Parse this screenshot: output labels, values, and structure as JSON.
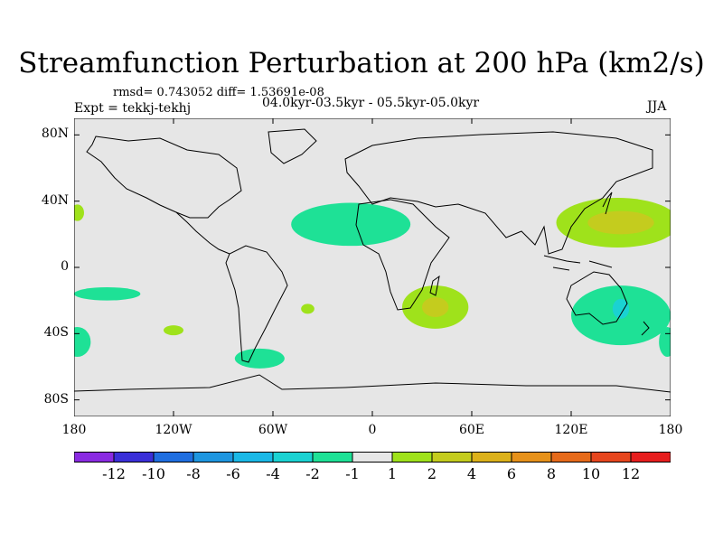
{
  "title": "Streamfunction Perturbation at 200 hPa (km2/s)",
  "stats_line": "rmsd= 0.743052 diff= 1.53691e-08",
  "experiment": "Expt = tekkj-tekhj",
  "period": "04.0kyr-03.5kyr - 05.5kyr-05.0kyr",
  "season": "JJA",
  "map": {
    "projection": "cylindrical equidistant",
    "lon_range": [
      -180,
      180
    ],
    "lat_range": [
      -90,
      90
    ],
    "background": "#e6e6e6",
    "lat_ticks": [
      {
        "value": 80,
        "label": "80N"
      },
      {
        "value": 40,
        "label": "40N"
      },
      {
        "value": 0,
        "label": "0"
      },
      {
        "value": -40,
        "label": "40S"
      },
      {
        "value": -80,
        "label": "80S"
      }
    ],
    "lon_ticks": [
      {
        "value": -180,
        "label": "180"
      },
      {
        "value": -120,
        "label": "120W"
      },
      {
        "value": -60,
        "label": "60W"
      },
      {
        "value": 0,
        "label": "0"
      },
      {
        "value": 60,
        "label": "60E"
      },
      {
        "value": 120,
        "label": "120E"
      },
      {
        "value": 180,
        "label": "180"
      }
    ],
    "anomalies": [
      {
        "name": "north-atlantic-sahara-negative",
        "category": "-2 to -1",
        "center_lon": -13,
        "center_lat": 26,
        "half_lon": 36,
        "half_lat": 13,
        "color": "#1ee196"
      },
      {
        "name": "east-asia-positive",
        "category": "1 to 2",
        "center_lon": 148,
        "center_lat": 27,
        "half_lon": 37,
        "half_lat": 15,
        "color": "#9fe21b"
      },
      {
        "name": "east-asia-positive-core",
        "category": "2 to 4",
        "center_lon": 150,
        "center_lat": 27,
        "half_lon": 20,
        "half_lat": 7,
        "color": "#c4cc1e"
      },
      {
        "name": "southern-africa-positive",
        "category": "1 to 2",
        "center_lon": 38,
        "center_lat": -24,
        "half_lon": 20,
        "half_lat": 13,
        "color": "#9fe21b"
      },
      {
        "name": "southern-africa-positive-core",
        "category": "2 to 4",
        "center_lon": 38,
        "center_lat": -24,
        "half_lon": 8,
        "half_lat": 6,
        "color": "#c4cc1e"
      },
      {
        "name": "australia-negative",
        "category": "-2 to -1",
        "center_lon": 150,
        "center_lat": -29,
        "half_lon": 30,
        "half_lat": 18,
        "color": "#1ee196"
      },
      {
        "name": "australia-negative-core",
        "category": "-4 to -2",
        "center_lon": 150,
        "center_lat": -25,
        "half_lon": 5,
        "half_lat": 6,
        "color": "#1ad2d2"
      },
      {
        "name": "south-america-tip-negative",
        "category": "-2 to -1",
        "center_lon": -68,
        "center_lat": -55,
        "half_lon": 15,
        "half_lat": 6,
        "color": "#1ee196"
      },
      {
        "name": "southeast-pacific-negative",
        "category": "-2 to -1",
        "center_lon": -160,
        "center_lat": -16,
        "half_lon": 20,
        "half_lat": 4,
        "color": "#1ee196"
      },
      {
        "name": "south-atlantic-positive-small",
        "category": "1 to 2",
        "center_lon": -39,
        "center_lat": -25,
        "half_lon": 4,
        "half_lat": 3,
        "color": "#9fe21b"
      },
      {
        "name": "south-pacific-positive-small",
        "category": "1 to 2",
        "center_lon": -120,
        "center_lat": -38,
        "half_lon": 6,
        "half_lat": 3,
        "color": "#9fe21b"
      },
      {
        "name": "east-pacific-subtropical-positive",
        "category": "1 to 2",
        "center_lon": -178,
        "center_lat": 33,
        "half_lon": 4,
        "half_lat": 5,
        "color": "#9fe21b"
      },
      {
        "name": "dateline-south-negative-west",
        "category": "-2 to -1",
        "center_lon": -178,
        "center_lat": -45,
        "half_lon": 8,
        "half_lat": 9,
        "color": "#1ee196"
      },
      {
        "name": "dateline-south-negative-east",
        "category": "-2 to -1",
        "center_lon": 178,
        "center_lat": -45,
        "half_lon": 5,
        "half_lat": 9,
        "color": "#1ee196"
      }
    ]
  },
  "colorbar": {
    "labels": [
      "-12",
      "-10",
      "-8",
      "-6",
      "-4",
      "-2",
      "-1",
      "1",
      "2",
      "4",
      "6",
      "8",
      "10",
      "12"
    ],
    "colors": [
      "#8a2be2",
      "#3a2fd8",
      "#1f6ee0",
      "#1e96e0",
      "#1ab8e6",
      "#1ad2d2",
      "#1ee196",
      "#e6e6e6",
      "#9fe21b",
      "#c4cc1e",
      "#dcb11a",
      "#e6911a",
      "#e66a1a",
      "#e6461e",
      "#e61e1e"
    ]
  }
}
